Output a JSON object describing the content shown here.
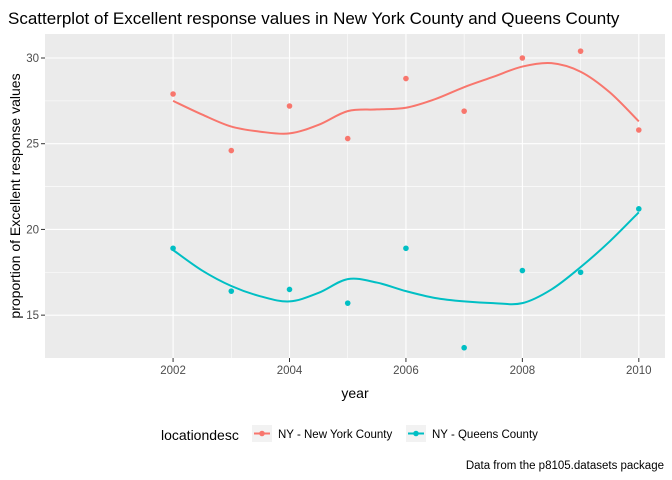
{
  "chart_data": {
    "type": "scatter",
    "title": "Scatterplot of Excellent response values in New York County and Queens County",
    "xlabel": "year",
    "ylabel": "proportion of Excellent response values",
    "caption": "Data from the p8105.datasets package",
    "xlim": [
      1999.8,
      2010.45
    ],
    "ylim": [
      12.5,
      31.4
    ],
    "x_ticks": [
      2002,
      2004,
      2006,
      2008,
      2010
    ],
    "x_tick_labels": [
      "2002",
      "2004",
      "2006",
      "2008",
      "2010"
    ],
    "y_ticks": [
      15,
      20,
      25,
      30
    ],
    "y_tick_labels": [
      "15",
      "20",
      "25",
      "30"
    ],
    "grid": true,
    "legend_title": "locationdesc",
    "legend_position": "bottom",
    "series": [
      {
        "name": "NY - New York County",
        "color": "#F8766D",
        "points": [
          {
            "x": 2002,
            "y": 27.9
          },
          {
            "x": 2003,
            "y": 24.6
          },
          {
            "x": 2004,
            "y": 27.2
          },
          {
            "x": 2005,
            "y": 25.3
          },
          {
            "x": 2006,
            "y": 28.8
          },
          {
            "x": 2007,
            "y": 26.9
          },
          {
            "x": 2008,
            "y": 30.0
          },
          {
            "x": 2009,
            "y": 30.4
          },
          {
            "x": 2010,
            "y": 25.8
          }
        ],
        "smooth": [
          {
            "x": 2002,
            "y": 27.5
          },
          {
            "x": 2002.5,
            "y": 26.7
          },
          {
            "x": 2003,
            "y": 26.0
          },
          {
            "x": 2003.5,
            "y": 25.7
          },
          {
            "x": 2004,
            "y": 25.6
          },
          {
            "x": 2004.5,
            "y": 26.1
          },
          {
            "x": 2005,
            "y": 26.9
          },
          {
            "x": 2005.5,
            "y": 27.0
          },
          {
            "x": 2006,
            "y": 27.1
          },
          {
            "x": 2006.5,
            "y": 27.6
          },
          {
            "x": 2007,
            "y": 28.3
          },
          {
            "x": 2007.5,
            "y": 28.9
          },
          {
            "x": 2008,
            "y": 29.5
          },
          {
            "x": 2008.5,
            "y": 29.7
          },
          {
            "x": 2009,
            "y": 29.2
          },
          {
            "x": 2009.5,
            "y": 28.0
          },
          {
            "x": 2010,
            "y": 26.3
          }
        ]
      },
      {
        "name": "NY - Queens County",
        "color": "#00BFC4",
        "points": [
          {
            "x": 2002,
            "y": 18.9
          },
          {
            "x": 2003,
            "y": 16.4
          },
          {
            "x": 2004,
            "y": 16.5
          },
          {
            "x": 2005,
            "y": 15.7
          },
          {
            "x": 2006,
            "y": 18.9
          },
          {
            "x": 2007,
            "y": 13.1
          },
          {
            "x": 2008,
            "y": 17.6
          },
          {
            "x": 2009,
            "y": 17.5
          },
          {
            "x": 2010,
            "y": 21.2
          }
        ],
        "smooth": [
          {
            "x": 2002,
            "y": 18.8
          },
          {
            "x": 2002.5,
            "y": 17.6
          },
          {
            "x": 2003,
            "y": 16.7
          },
          {
            "x": 2003.5,
            "y": 16.1
          },
          {
            "x": 2004,
            "y": 15.8
          },
          {
            "x": 2004.5,
            "y": 16.3
          },
          {
            "x": 2005,
            "y": 17.1
          },
          {
            "x": 2005.5,
            "y": 16.9
          },
          {
            "x": 2006,
            "y": 16.4
          },
          {
            "x": 2006.5,
            "y": 16.0
          },
          {
            "x": 2007,
            "y": 15.8
          },
          {
            "x": 2007.5,
            "y": 15.7
          },
          {
            "x": 2008,
            "y": 15.7
          },
          {
            "x": 2008.5,
            "y": 16.5
          },
          {
            "x": 2009,
            "y": 17.8
          },
          {
            "x": 2009.5,
            "y": 19.3
          },
          {
            "x": 2010,
            "y": 21.0
          }
        ]
      }
    ]
  },
  "colors": {
    "panel_background": "#EBEBEB",
    "grid_major": "#FFFFFF",
    "legend_key_background": "#F2F2F2"
  }
}
